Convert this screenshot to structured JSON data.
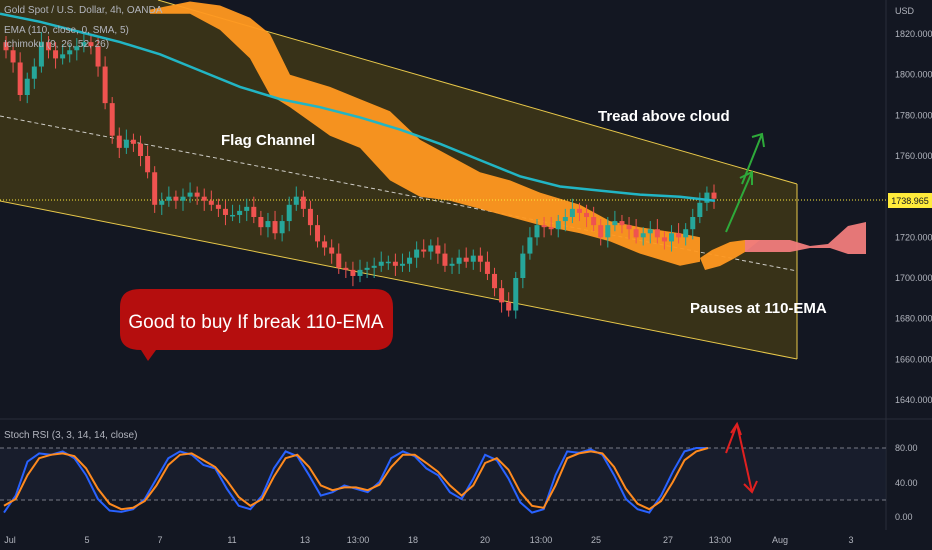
{
  "header": {
    "symbol": "Gold Spot / U.S. Dollar, 4h, OANDA",
    "ema": "EMA (110, close, 0, SMA, 5)",
    "ichimoku": "Ichimoku (9, 26, 52, 26)",
    "currency": "USD"
  },
  "oscillator": {
    "label": "Stoch RSI (3, 3, 14, 14, close)"
  },
  "annotations": {
    "flag_channel": "Flag Channel",
    "tread": "Tread above cloud",
    "pauses": "Pauses at 110-EMA",
    "bubble": "Good to buy If break 110-EMA"
  },
  "colors": {
    "background": "#131722",
    "channel_fill": "#3a3418",
    "channel_border": "#e8c84a",
    "cloud_orange": "#ff9820",
    "cloud_pink": "#f07c7c",
    "ema": "#22b5c4",
    "candle_up": "#26a69a",
    "candle_down": "#ef5350",
    "rsi_k": "#2962ff",
    "rsi_d": "#ff8a1e",
    "bubble": "#b50e0e",
    "arrow_green": "#2eaa3a",
    "arrow_red": "#e02020",
    "price_tag": "#ffeb3b"
  },
  "chart_data": [
    {
      "type": "candlestick",
      "ylabel": "USD",
      "ylim": [
        1630,
        1835
      ],
      "y_ticks": [
        "1820.000",
        "1800.000",
        "1780.000",
        "1760.000",
        "1740.000",
        "1720.000",
        "1700.000",
        "1680.000",
        "1660.000",
        "1640.000"
      ],
      "x_ticks": [
        "Jul",
        "5",
        "7",
        "11",
        "13",
        "13:00",
        "18",
        "20",
        "13:00",
        "25",
        "27",
        "13:00",
        "Aug",
        "3"
      ],
      "last_price": "1738.965",
      "series": [
        {
          "name": "Gold Spot / U.S. Dollar",
          "close": [
            1812,
            1806,
            1790,
            1798,
            1804,
            1816,
            1812,
            1808,
            1810,
            1812,
            1814,
            1816,
            1814,
            1804,
            1786,
            1770,
            1764,
            1768,
            1766,
            1760,
            1752,
            1736,
            1738,
            1740,
            1738,
            1740,
            1742,
            1740,
            1738,
            1736,
            1734,
            1731,
            1731,
            1733,
            1735,
            1730,
            1725,
            1728,
            1722,
            1728,
            1736,
            1740,
            1734,
            1726,
            1718,
            1715,
            1712,
            1705,
            1704,
            1701,
            1704,
            1705,
            1706,
            1708,
            1708,
            1706,
            1707,
            1710,
            1714,
            1713,
            1716,
            1712,
            1706,
            1707,
            1710,
            1708,
            1711,
            1708,
            1702,
            1695,
            1688,
            1684,
            1700,
            1712,
            1720,
            1726,
            1725,
            1724,
            1728,
            1730,
            1734,
            1732,
            1730,
            1726,
            1720,
            1726,
            1728,
            1726,
            1724,
            1720,
            1722,
            1724,
            1720,
            1718,
            1722,
            1720,
            1724,
            1730,
            1737,
            1742,
            1739
          ]
        },
        {
          "name": "EMA (110)",
          "x": [
            0,
            40,
            80,
            120,
            160,
            200,
            240,
            280,
            320,
            360,
            400,
            440,
            480,
            520,
            560,
            600,
            640,
            680,
            715
          ],
          "values": [
            1830,
            1826,
            1821,
            1816,
            1810,
            1802,
            1794,
            1788,
            1784,
            1779,
            1773,
            1766,
            1758,
            1750,
            1745,
            1743,
            1741,
            1740,
            1738
          ]
        },
        {
          "name": "Ichimoku cloud top",
          "x": [
            150,
            190,
            220,
            250,
            270,
            290,
            330,
            360,
            390,
            420,
            450,
            480,
            510,
            540,
            580,
            610,
            640,
            680,
            700
          ],
          "values": [
            1832,
            1836,
            1834,
            1828,
            1820,
            1800,
            1794,
            1788,
            1782,
            1768,
            1760,
            1752,
            1748,
            1742,
            1736,
            1728,
            1725,
            1722,
            1720
          ]
        },
        {
          "name": "Ichimoku cloud bottom",
          "x": [
            150,
            190,
            220,
            250,
            270,
            290,
            330,
            360,
            390,
            420,
            450,
            480,
            510,
            540,
            580,
            610,
            640,
            680,
            700
          ],
          "values": [
            1830,
            1830,
            1822,
            1808,
            1790,
            1784,
            1770,
            1764,
            1748,
            1740,
            1738,
            1734,
            1730,
            1726,
            1722,
            1718,
            1712,
            1706,
            1708
          ]
        }
      ]
    },
    {
      "type": "line",
      "ylim": [
        0,
        100
      ],
      "y_ticks": [
        "80.00",
        "40.00",
        "0.00"
      ],
      "series": [
        {
          "name": "K",
          "values": [
            5,
            30,
            80,
            92,
            90,
            95,
            85,
            60,
            25,
            8,
            6,
            10,
            25,
            55,
            85,
            95,
            90,
            75,
            70,
            40,
            15,
            10,
            30,
            70,
            95,
            88,
            60,
            30,
            35,
            45,
            40,
            35,
            50,
            85,
            95,
            88,
            70,
            60,
            35,
            25,
            55,
            90,
            82,
            55,
            20,
            5,
            10,
            60,
            95,
            93,
            98,
            90,
            60,
            25,
            10,
            5,
            30,
            65,
            95,
            100,
            100
          ]
        },
        {
          "name": "D",
          "values": [
            15,
            25,
            60,
            85,
            90,
            92,
            88,
            70,
            40,
            18,
            10,
            12,
            22,
            45,
            75,
            90,
            92,
            82,
            72,
            52,
            28,
            15,
            25,
            58,
            85,
            90,
            72,
            45,
            38,
            42,
            42,
            38,
            46,
            72,
            90,
            90,
            78,
            65,
            45,
            30,
            45,
            78,
            85,
            68,
            35,
            15,
            12,
            45,
            85,
            92,
            95,
            92,
            72,
            40,
            18,
            10,
            22,
            50,
            82,
            95,
            100
          ]
        }
      ]
    }
  ]
}
